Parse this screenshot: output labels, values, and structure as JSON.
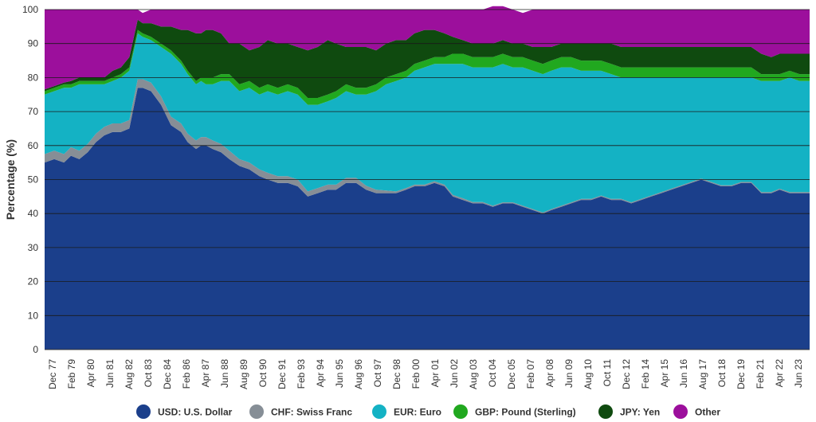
{
  "chart_data": {
    "type": "area",
    "stacked": true,
    "ylabel": "Percentage (%)",
    "ylim": [
      0,
      100
    ],
    "yticks": [
      0,
      10,
      20,
      30,
      40,
      50,
      60,
      70,
      80,
      90,
      100
    ],
    "grid": true,
    "legend_position": "bottom",
    "x_tick_labels": [
      "Dec 77",
      "Feb 79",
      "Apr 80",
      "Jun 81",
      "Aug 82",
      "Oct 83",
      "Dec 84",
      "Feb 86",
      "Apr 87",
      "Jun 88",
      "Aug 89",
      "Oct 90",
      "Dec 91",
      "Feb 93",
      "Apr 94",
      "Jun 95",
      "Aug 96",
      "Oct 97",
      "Dec 98",
      "Feb 00",
      "Apr 01",
      "Jun 02",
      "Aug 03",
      "Oct 04",
      "Dec 05",
      "Feb 07",
      "Apr 08",
      "Jun 09",
      "Aug 10",
      "Oct 11",
      "Dec 12",
      "Feb 14",
      "Apr 15",
      "Jun 16",
      "Aug 17",
      "Oct 18",
      "Dec 19",
      "Feb 21",
      "Apr 22",
      "Jun 23"
    ],
    "x": [
      1977.92,
      1978.5,
      1979.08,
      1979.5,
      1980.0,
      1980.5,
      1981.0,
      1981.5,
      1982.0,
      1982.5,
      1983.0,
      1983.5,
      1983.8,
      1984.3,
      1984.9,
      1985.5,
      1986.1,
      1986.5,
      1987.0,
      1987.3,
      1987.6,
      1988.0,
      1988.5,
      1989.0,
      1989.6,
      1990.2,
      1990.8,
      1991.3,
      1991.9,
      1992.5,
      1993.1,
      1993.7,
      1994.3,
      1994.9,
      1995.4,
      1996.0,
      1996.6,
      1997.2,
      1997.8,
      1998.4,
      1999.0,
      1999.6,
      2000.1,
      2000.7,
      2001.3,
      2001.9,
      2002.4,
      2003.0,
      2003.6,
      2004.2,
      2004.8,
      2005.4,
      2006.0,
      2006.6,
      2007.2,
      2007.8,
      2008.3,
      2008.9,
      2009.5,
      2010.1,
      2010.7,
      2011.3,
      2011.9,
      2012.5,
      2013.1,
      2013.7,
      2014.3,
      2014.9,
      2015.5,
      2016.1,
      2016.7,
      2017.3,
      2017.9,
      2018.5,
      2019.1,
      2019.7,
      2020.3,
      2020.9,
      2021.5,
      2022.0,
      2022.6,
      2023.2,
      2023.8
    ],
    "series": [
      {
        "name": "USD: U.S. Dollar",
        "color": "#1b3f8b",
        "values": [
          55,
          56,
          55,
          57,
          56,
          58,
          61,
          63,
          64,
          64,
          65,
          77,
          77,
          76,
          72,
          66,
          64,
          61,
          59,
          60,
          60,
          59,
          58,
          56,
          54,
          53,
          51,
          50,
          49,
          49,
          48,
          45,
          46,
          47,
          47,
          49,
          49,
          47,
          46,
          46,
          46,
          47,
          48,
          48,
          49,
          48,
          45,
          44,
          43,
          43,
          42,
          43,
          43,
          42,
          41,
          40,
          41,
          42,
          43,
          44,
          44,
          45,
          44,
          44,
          43,
          44,
          45,
          46,
          47,
          48,
          49,
          50,
          49,
          48,
          48,
          49,
          49,
          46,
          46,
          47,
          46,
          46,
          46
        ]
      },
      {
        "name": "CHF: Swiss Franc",
        "color": "#868e96",
        "values": [
          2.5,
          2.5,
          2.5,
          2.5,
          2.5,
          2.5,
          2.5,
          2.5,
          2.5,
          2.5,
          2.5,
          2.5,
          2.5,
          2.5,
          2.5,
          2.5,
          2.5,
          2.5,
          2.5,
          2.5,
          2.5,
          2.5,
          2.5,
          2.5,
          2.0,
          2.0,
          2.0,
          2.0,
          2.0,
          2.0,
          2.0,
          1.5,
          1.5,
          1.5,
          1.5,
          1.5,
          1.5,
          1.2,
          1.0,
          0.8,
          0.5,
          0.5,
          0.5,
          0.5,
          0.5,
          0.5,
          0.5,
          0.5,
          0.4,
          0.4,
          0.3,
          0.3,
          0.3,
          0.3,
          0.3,
          0.3,
          0.3,
          0.3,
          0.3,
          0.3,
          0.3,
          0.3,
          0.3,
          0.3,
          0.3,
          0.3,
          0.3,
          0.3,
          0.3,
          0.3,
          0.3,
          0.3,
          0.3,
          0.3,
          0.3,
          0.3,
          0.3,
          0.3,
          0.3,
          0.3,
          0.3,
          0.3,
          0.3
        ]
      },
      {
        "name": "EUR: Euro",
        "color": "#14b2c4",
        "values": [
          17.5,
          17.5,
          19.5,
          17.5,
          19.5,
          17.5,
          14.5,
          12.5,
          12.5,
          13.5,
          14.5,
          13.5,
          12.5,
          12.5,
          14.5,
          18.5,
          17.5,
          17.5,
          16.5,
          16.5,
          15.5,
          16.5,
          18.5,
          20.5,
          20.0,
          22.0,
          22.0,
          24.0,
          24.0,
          25.0,
          25.0,
          25.5,
          24.5,
          24.5,
          25.5,
          25.5,
          24.5,
          26.8,
          29.0,
          31.2,
          32.5,
          32.5,
          33.5,
          34.5,
          34.5,
          35.5,
          38.5,
          39.5,
          39.6,
          39.6,
          40.7,
          40.7,
          39.7,
          40.7,
          40.7,
          40.7,
          40.7,
          40.7,
          39.7,
          37.7,
          37.7,
          36.7,
          36.7,
          35.7,
          36.7,
          35.7,
          34.7,
          33.7,
          32.7,
          31.7,
          30.7,
          29.7,
          30.7,
          31.7,
          31.7,
          30.7,
          30.7,
          32.7,
          32.7,
          31.7,
          33.7,
          32.7,
          32.7
        ]
      },
      {
        "name": "GBP: Pound (Sterling)",
        "color": "#21a81f",
        "values": [
          1,
          1,
          1,
          1,
          1,
          1,
          1,
          1,
          1,
          1,
          1,
          1,
          1,
          1,
          1,
          1,
          1,
          1,
          1,
          1,
          2,
          2,
          2,
          2,
          2,
          2,
          2,
          2,
          2,
          2,
          2,
          2,
          2,
          2,
          2,
          2,
          2,
          2,
          2,
          2,
          2,
          2,
          2,
          2,
          2,
          2,
          3,
          3,
          3,
          3,
          3,
          3,
          3,
          3,
          3,
          3,
          3,
          3,
          3,
          3,
          3,
          3,
          3,
          3,
          3,
          3,
          3,
          3,
          3,
          3,
          3,
          3,
          3,
          3,
          3,
          3,
          3,
          2,
          2,
          2,
          2,
          2,
          2
        ]
      },
      {
        "name": "JPY: Yen",
        "color": "#0f4a0f",
        "values": [
          0.5,
          0.5,
          0.5,
          1,
          1,
          1,
          1,
          1,
          2,
          2,
          3,
          3,
          3,
          4,
          5,
          7,
          9,
          12,
          14,
          13,
          14,
          14,
          12,
          9,
          12,
          9,
          12,
          13,
          13,
          12,
          12,
          14,
          15,
          16,
          14,
          11,
          12,
          12,
          10,
          10,
          10,
          9,
          9,
          9,
          8,
          7,
          5,
          4,
          4,
          4,
          4,
          4,
          4,
          4,
          4,
          5,
          4,
          4,
          4,
          5,
          5,
          5,
          6,
          6,
          6,
          6,
          6,
          6,
          6,
          6,
          6,
          6,
          6,
          6,
          6,
          6,
          6,
          6,
          5,
          6,
          5,
          6,
          6
        ]
      },
      {
        "name": "Other",
        "color": "#9c0f9c",
        "values": [
          23.5,
          22.5,
          21.5,
          21,
          20,
          20,
          20,
          20,
          18,
          17,
          14,
          3,
          3,
          4,
          5,
          5,
          6,
          6,
          7,
          7,
          6,
          6,
          7,
          10,
          10,
          12,
          11,
          9,
          10,
          10,
          11,
          12,
          11,
          9,
          10,
          11,
          11,
          11,
          12,
          10,
          9,
          9,
          7,
          6,
          6,
          7,
          8,
          9,
          10,
          10,
          11,
          10,
          10,
          9,
          11,
          11,
          11,
          10,
          10,
          10,
          10,
          10,
          10,
          11,
          11,
          11,
          11,
          11,
          11,
          11,
          11,
          11,
          11,
          11,
          11,
          11,
          11,
          13,
          14,
          13,
          13,
          13,
          13
        ]
      }
    ]
  }
}
